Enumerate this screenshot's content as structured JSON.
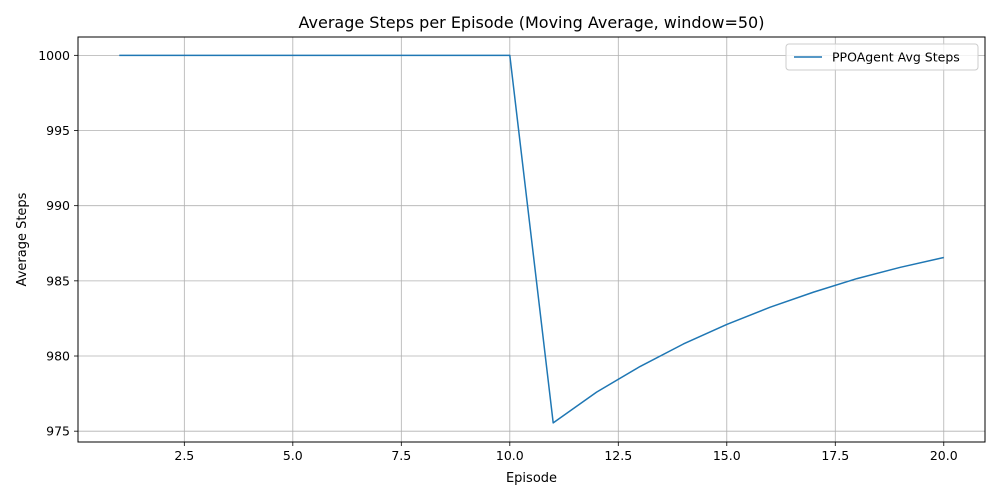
{
  "chart_data": {
    "type": "line",
    "title": "Average Steps per Episode (Moving Average, window=50)",
    "xlabel": "Episode",
    "ylabel": "Average Steps",
    "xlim": [
      0.05,
      20.95
    ],
    "ylim": [
      974.28,
      1001.22
    ],
    "xticks": [
      2.5,
      5.0,
      7.5,
      10.0,
      12.5,
      15.0,
      17.5,
      20.0
    ],
    "xtick_labels": [
      "2.5",
      "5.0",
      "7.5",
      "10.0",
      "12.5",
      "15.0",
      "17.5",
      "20.0"
    ],
    "yticks": [
      975,
      980,
      985,
      990,
      995,
      1000
    ],
    "ytick_labels": [
      "975",
      "980",
      "985",
      "990",
      "995",
      "1000"
    ],
    "grid": true,
    "legend_position": "upper right",
    "series": [
      {
        "name": "PPOAgent Avg Steps",
        "color": "#1f77b4",
        "x": [
          1,
          2,
          3,
          4,
          5,
          6,
          7,
          8,
          9,
          10,
          11,
          12,
          13,
          14,
          15,
          16,
          17,
          18,
          19,
          20
        ],
        "y": [
          1000,
          1000,
          1000,
          1000,
          1000,
          1000,
          1000,
          1000,
          1000,
          1000,
          975.55,
          977.6,
          979.3,
          980.8,
          982.1,
          983.25,
          984.25,
          985.15,
          985.9,
          986.55
        ]
      }
    ]
  }
}
